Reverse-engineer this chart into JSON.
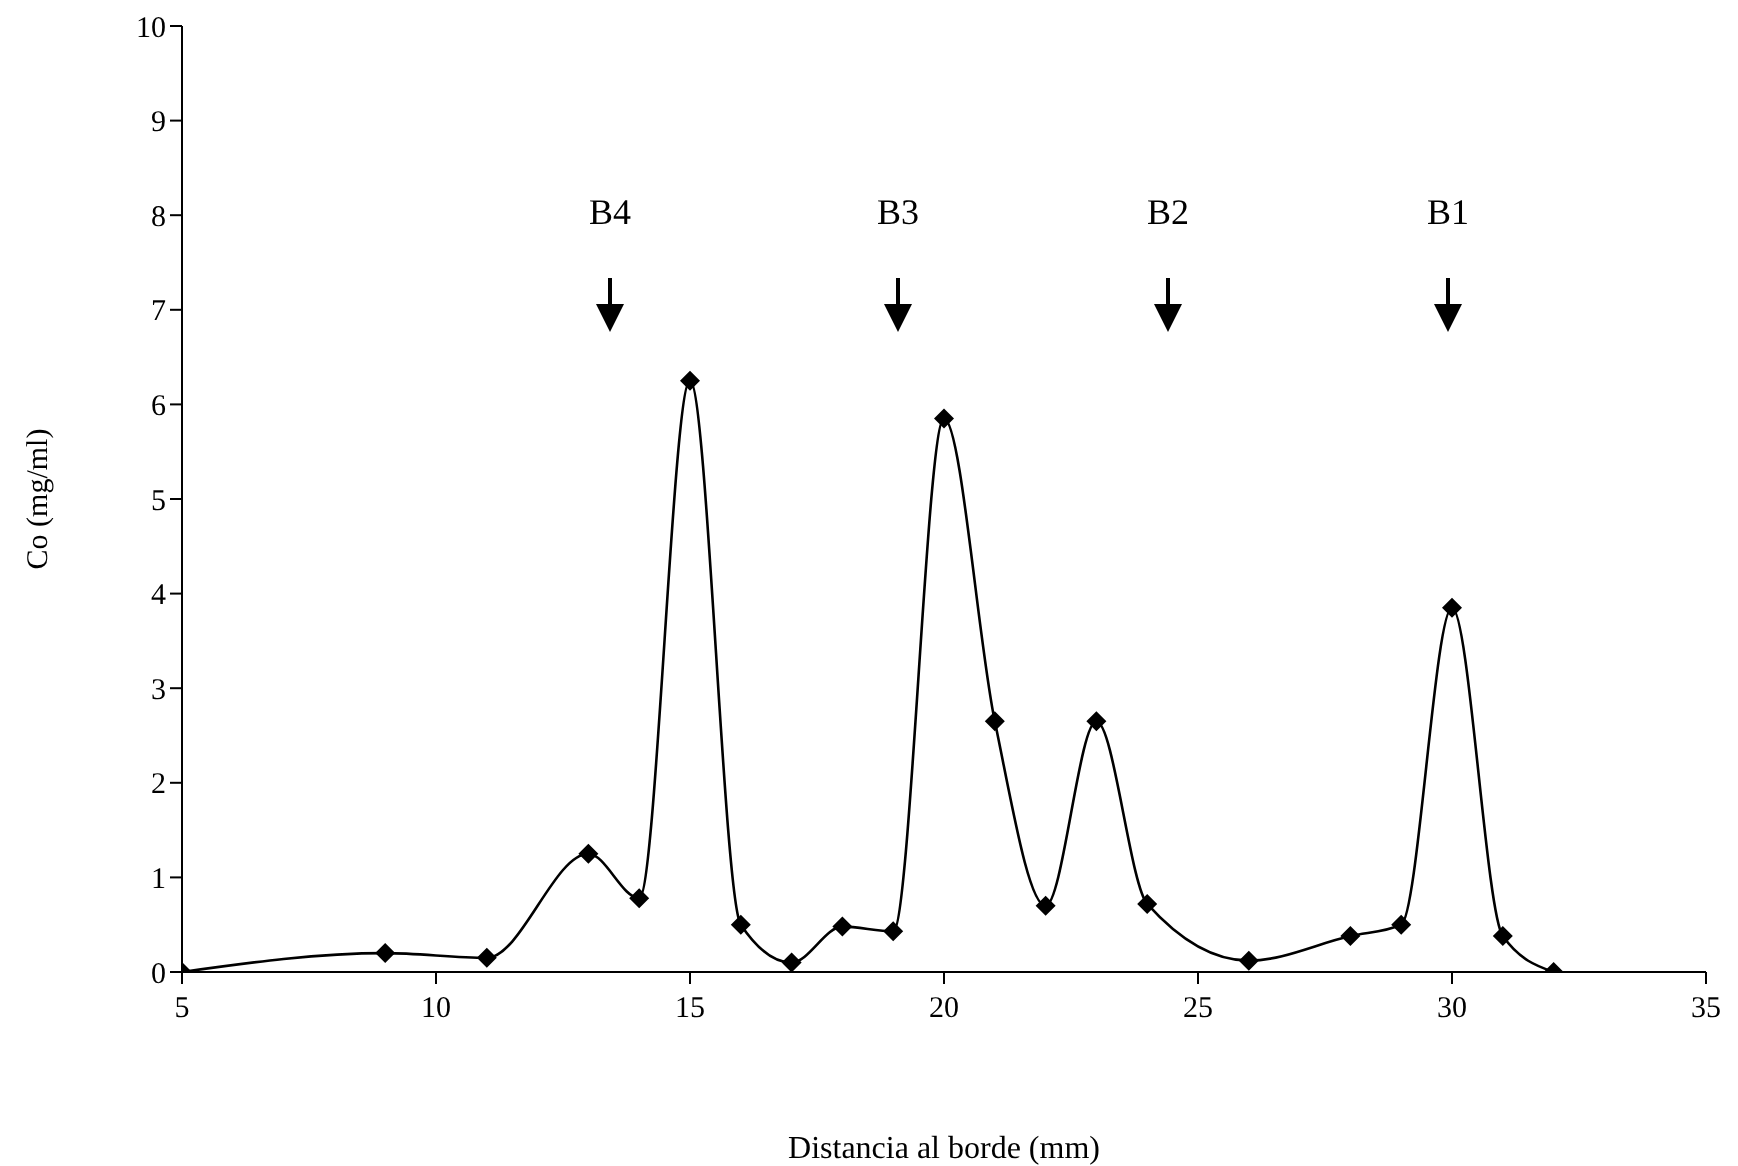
{
  "chart_data": {
    "type": "line",
    "xlabel": "Distancia al borde (mm)",
    "ylabel": "Co (mg/ml)",
    "x": [
      5,
      9,
      11,
      13,
      14,
      15,
      16,
      17,
      18,
      19,
      20,
      21,
      22,
      23,
      24,
      26,
      28,
      29,
      30,
      31,
      32
    ],
    "series": [
      {
        "color": "#000000",
        "values": [
          0,
          0.2,
          0.15,
          1.25,
          0.78,
          6.25,
          0.5,
          0.1,
          0.48,
          0.43,
          5.85,
          2.65,
          0.7,
          2.65,
          0.72,
          0.12,
          0.38,
          0.5,
          3.85,
          0.38,
          0
        ]
      }
    ],
    "xlim": [
      5,
      35
    ],
    "xticks": [
      5,
      10,
      15,
      20,
      25,
      30,
      35
    ],
    "ylim": [
      0,
      10
    ],
    "yticks": [
      0,
      1,
      2,
      3,
      4,
      5,
      6,
      7,
      8,
      9,
      10
    ],
    "grid": false,
    "legend": false,
    "marker": "diamond",
    "line_style": "solid",
    "annotations": [
      "B4",
      "B3",
      "B2",
      "B1"
    ]
  }
}
